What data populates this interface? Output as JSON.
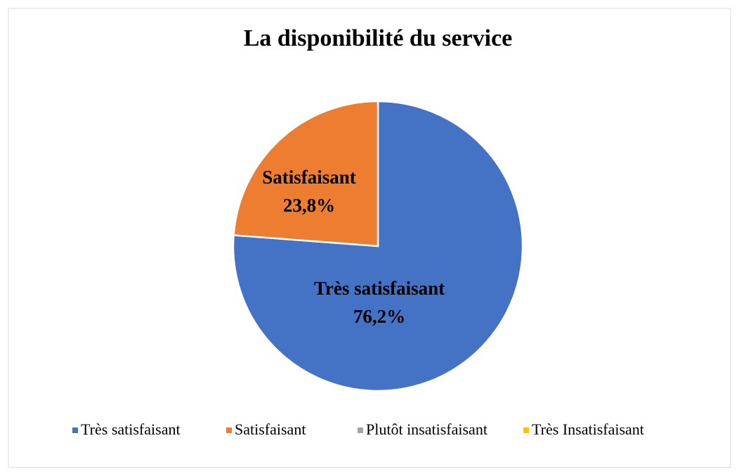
{
  "chart_data": {
    "type": "pie",
    "title": "La disponibilité du service",
    "categories": [
      "Très satisfaisant",
      "Satisfaisant",
      "Plutôt insatisfaisant",
      "Très Insatisfaisant"
    ],
    "values": [
      76.2,
      23.8,
      0,
      0
    ],
    "value_labels": [
      "76,2%",
      "23,8%",
      null,
      null
    ],
    "colors": [
      "#4472c4",
      "#ed7d31",
      "#a5a5a5",
      "#ffc000"
    ],
    "legend": "bottom"
  }
}
